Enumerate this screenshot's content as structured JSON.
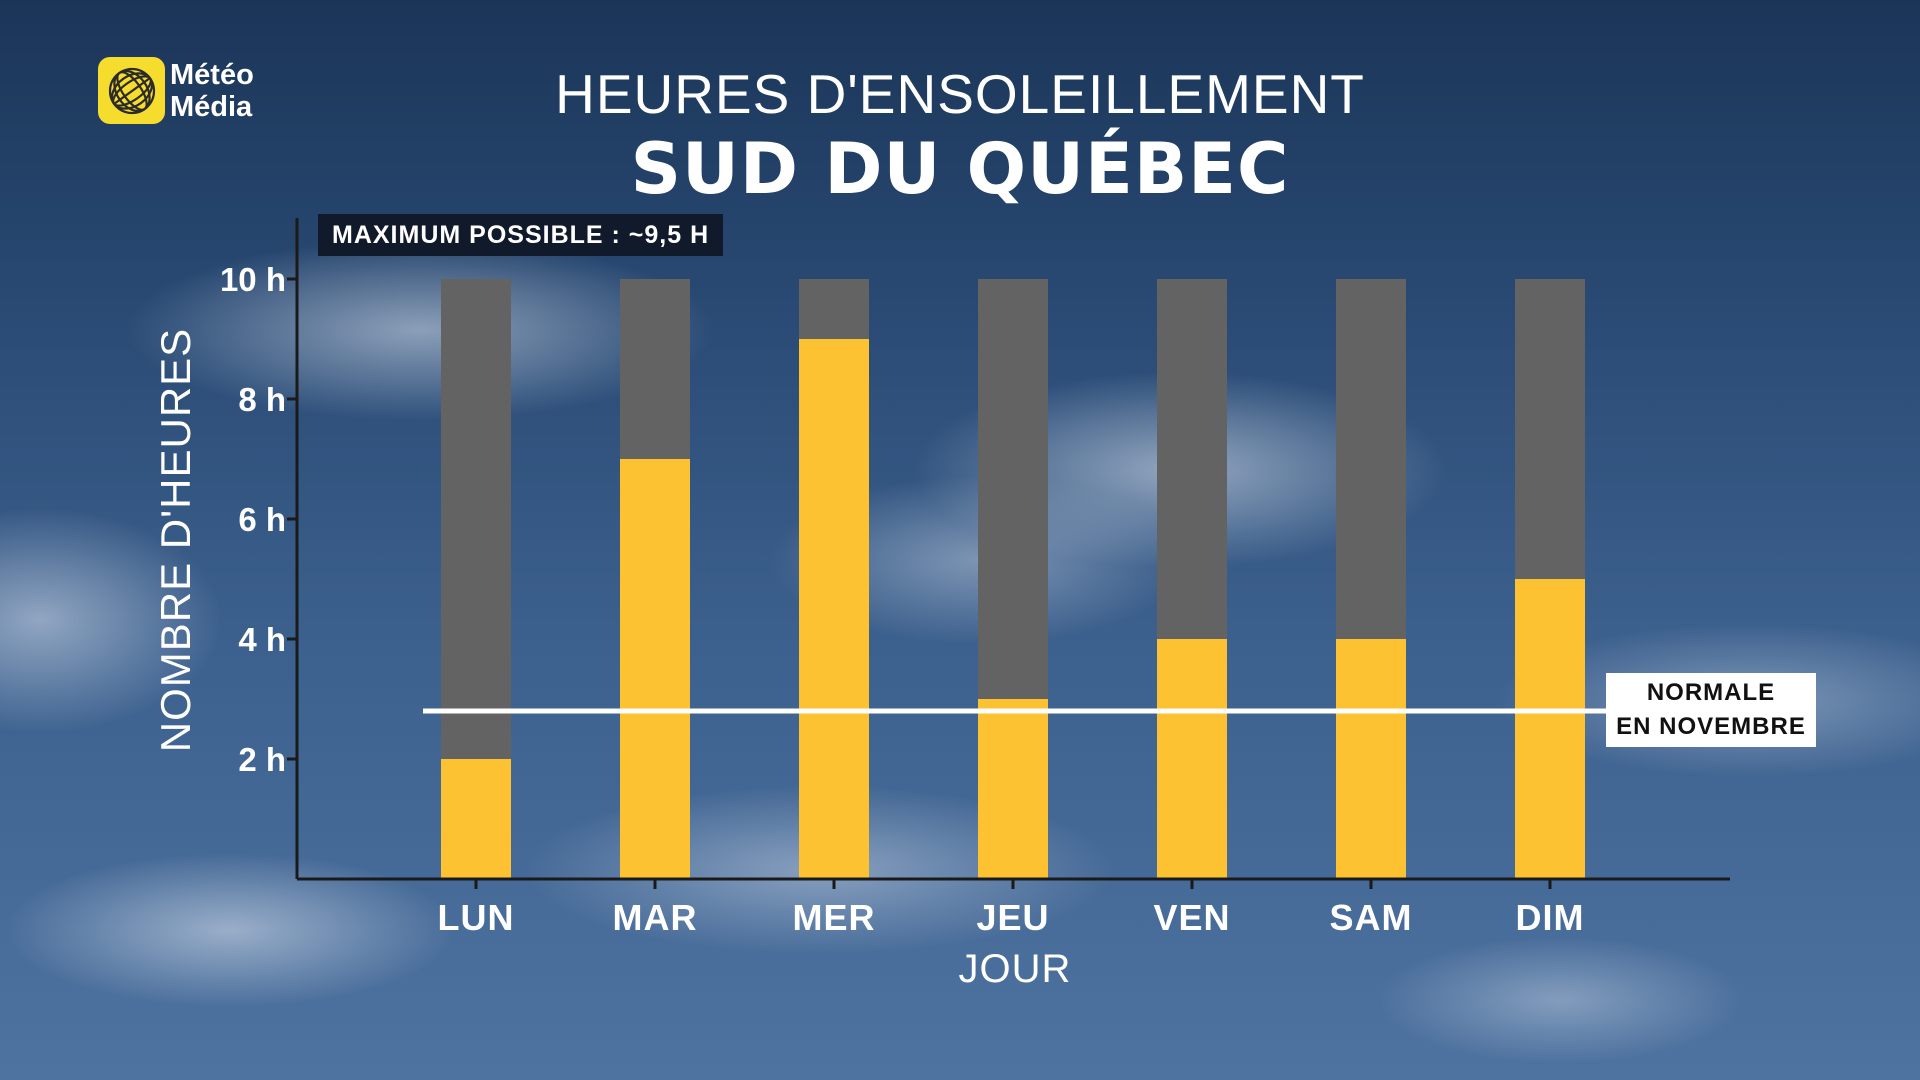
{
  "brand": {
    "line1": "Météo",
    "line2": "Média",
    "logo_icon": "globe-icon",
    "logo_color": "#f6dc2d"
  },
  "header": {
    "title": "HEURES D'ENSOLEILLEMENT",
    "subtitle": "SUD DU QUÉBEC"
  },
  "annotations": {
    "max_possible": "MAXIMUM POSSIBLE : ~9,5 H",
    "normal_line1": "NORMALE",
    "normal_line2": "EN NOVEMBRE"
  },
  "chart_data": {
    "type": "bar",
    "title": "HEURES D'ENSOLEILLEMENT",
    "subtitle": "SUD DU QUÉBEC",
    "xlabel": "JOUR",
    "ylabel": "NOMBRE D'HEURES",
    "categories": [
      "LUN",
      "MAR",
      "MER",
      "JEU",
      "VEN",
      "SAM",
      "DIM"
    ],
    "series": [
      {
        "name": "",
        "values": [
          2,
          7,
          9,
          3,
          4,
          4,
          5
        ],
        "color": "#fdc231"
      }
    ],
    "background_bar_value": 10,
    "background_bar_color": "#636363",
    "ylim": [
      0,
      10
    ],
    "yticks": [
      2,
      4,
      6,
      8,
      10
    ],
    "ytick_labels": [
      "2 h",
      "4 h",
      "6 h",
      "8 h",
      "10 h"
    ],
    "reference_line": {
      "value": 2.8,
      "color": "#ffffff"
    },
    "grid": false,
    "legend": "none"
  }
}
